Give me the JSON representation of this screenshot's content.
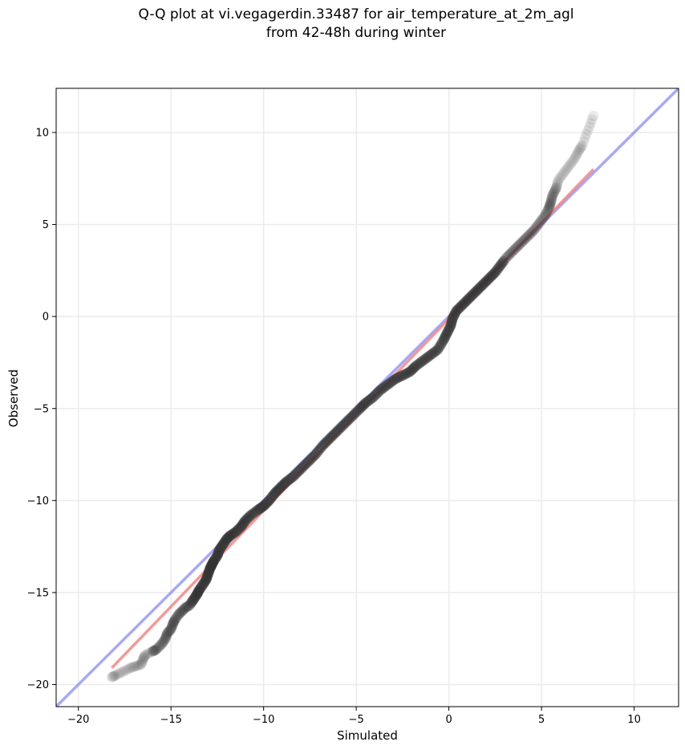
{
  "chart_data": {
    "type": "scatter",
    "title_line1": "Q-Q plot at vi.vegagerdin.33487 for air_temperature_at_2m_agl",
    "title_line2": "from 42-48h during winter",
    "xlabel": "Simulated",
    "ylabel": "Observed",
    "xlim": [
      -21.2,
      12.4
    ],
    "ylim": [
      -21.2,
      12.4
    ],
    "xticks": [
      -20,
      -15,
      -10,
      -5,
      0,
      5,
      10
    ],
    "yticks": [
      -20,
      -15,
      -10,
      -5,
      0,
      5,
      10
    ],
    "xtick_labels": [
      "−20",
      "−15",
      "−10",
      "−5",
      "0",
      "5",
      "10"
    ],
    "ytick_labels": [
      "−20",
      "−15",
      "−10",
      "−5",
      "0",
      "5",
      "10"
    ],
    "grid": true,
    "quantile_points": [
      [
        -18.2,
        -19.6
      ],
      [
        -18.0,
        -19.5
      ],
      [
        -17.6,
        -19.3
      ],
      [
        -17.2,
        -19.1
      ],
      [
        -16.9,
        -19.0
      ],
      [
        -16.6,
        -18.9
      ],
      [
        -16.5,
        -18.6
      ],
      [
        -16.4,
        -18.4
      ],
      [
        -16.0,
        -18.2
      ],
      [
        -15.8,
        -18.1
      ],
      [
        -15.5,
        -17.8
      ],
      [
        -15.3,
        -17.5
      ],
      [
        -15.2,
        -17.2
      ],
      [
        -15.0,
        -17.0
      ],
      [
        -14.9,
        -16.7
      ],
      [
        -14.8,
        -16.5
      ],
      [
        -14.6,
        -16.2
      ],
      [
        -14.4,
        -16.0
      ],
      [
        -14.2,
        -15.8
      ],
      [
        -14.0,
        -15.7
      ],
      [
        -13.8,
        -15.4
      ],
      [
        -13.6,
        -15.1
      ],
      [
        -13.5,
        -14.9
      ],
      [
        -13.3,
        -14.6
      ],
      [
        -13.1,
        -14.3
      ],
      [
        -13.0,
        -14.0
      ],
      [
        -12.9,
        -13.7
      ],
      [
        -12.8,
        -13.5
      ],
      [
        -12.7,
        -13.3
      ],
      [
        -12.5,
        -13.0
      ],
      [
        -12.4,
        -12.7
      ],
      [
        -12.2,
        -12.4
      ],
      [
        -12.0,
        -12.1
      ],
      [
        -11.8,
        -11.9
      ],
      [
        -11.5,
        -11.7
      ],
      [
        -11.2,
        -11.4
      ],
      [
        -11.0,
        -11.1
      ],
      [
        -10.7,
        -10.8
      ],
      [
        -10.3,
        -10.5
      ],
      [
        -10.0,
        -10.3
      ],
      [
        -9.7,
        -10.0
      ],
      [
        -9.4,
        -9.6
      ],
      [
        -9.1,
        -9.3
      ],
      [
        -8.8,
        -9.0
      ],
      [
        -8.4,
        -8.7
      ],
      [
        -8.0,
        -8.3
      ],
      [
        -7.6,
        -7.9
      ],
      [
        -7.2,
        -7.5
      ],
      [
        -6.8,
        -7.0
      ],
      [
        -6.4,
        -6.6
      ],
      [
        -6.0,
        -6.2
      ],
      [
        -5.6,
        -5.8
      ],
      [
        -5.2,
        -5.4
      ],
      [
        -4.8,
        -5.0
      ],
      [
        -4.5,
        -4.7
      ],
      [
        -4.1,
        -4.4
      ],
      [
        -3.7,
        -4.0
      ],
      [
        -3.3,
        -3.7
      ],
      [
        -2.9,
        -3.4
      ],
      [
        -2.5,
        -3.2
      ],
      [
        -2.1,
        -3.0
      ],
      [
        -1.8,
        -2.7
      ],
      [
        -1.4,
        -2.4
      ],
      [
        -1.0,
        -2.1
      ],
      [
        -0.6,
        -1.8
      ],
      [
        -0.3,
        -1.3
      ],
      [
        -0.1,
        -0.9
      ],
      [
        0.1,
        -0.5
      ],
      [
        0.2,
        -0.1
      ],
      [
        0.4,
        0.3
      ],
      [
        0.7,
        0.6
      ],
      [
        1.0,
        0.9
      ],
      [
        1.3,
        1.2
      ],
      [
        1.6,
        1.5
      ],
      [
        1.9,
        1.8
      ],
      [
        2.2,
        2.1
      ],
      [
        2.5,
        2.4
      ],
      [
        2.8,
        2.8
      ],
      [
        3.1,
        3.2
      ],
      [
        3.4,
        3.5
      ],
      [
        3.7,
        3.8
      ],
      [
        4.0,
        4.1
      ],
      [
        4.3,
        4.4
      ],
      [
        4.6,
        4.7
      ],
      [
        4.9,
        5.1
      ],
      [
        5.2,
        5.5
      ],
      [
        5.4,
        5.9
      ],
      [
        5.5,
        6.2
      ],
      [
        5.6,
        6.6
      ],
      [
        5.8,
        7.0
      ],
      [
        5.9,
        7.4
      ],
      [
        6.2,
        7.8
      ],
      [
        6.5,
        8.2
      ],
      [
        6.8,
        8.6
      ],
      [
        7.0,
        9.0
      ],
      [
        7.2,
        9.3
      ],
      [
        7.5,
        10.1
      ],
      [
        7.8,
        10.9
      ]
    ],
    "fit_line": {
      "x": [
        -18.2,
        7.8
      ],
      "y": [
        -19.1,
        8.0
      ],
      "color": "#f08080"
    },
    "identity_line": {
      "x": [
        -21.2,
        12.4
      ],
      "y": [
        -21.2,
        12.4
      ],
      "color": "#8c8cf2"
    },
    "point_color": "#333333"
  }
}
